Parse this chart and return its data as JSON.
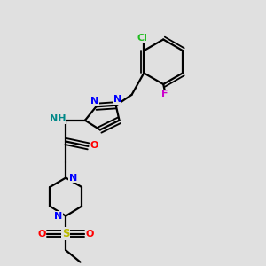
{
  "bg_color": "#e0e0e0",
  "bond_color": "#000000",
  "bond_lw": 1.6,
  "figsize": [
    3.0,
    3.0
  ],
  "dpi": 100,
  "atoms": {
    "Cl": {
      "color": "#22bb22"
    },
    "F": {
      "color": "#cc00cc"
    },
    "N": {
      "color": "#0000ff"
    },
    "NH": {
      "color": "#008888"
    },
    "O": {
      "color": "#ff0000"
    },
    "S": {
      "color": "#bbbb00"
    }
  }
}
